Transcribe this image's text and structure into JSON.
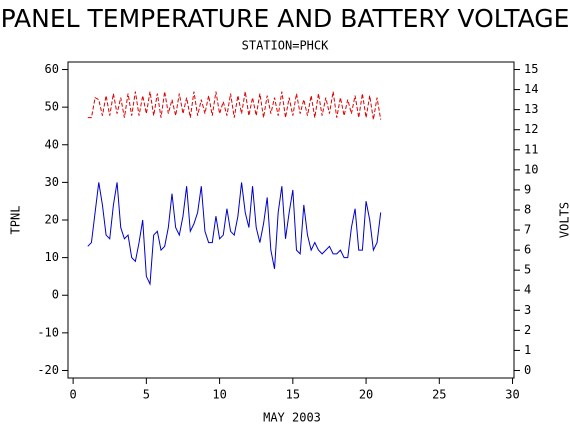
{
  "chart_data": {
    "type": "line",
    "title": "PANEL TEMPERATURE AND BATTERY VOLTAGE",
    "subtitle": "STATION=PHCK",
    "xlabel": "MAY 2003",
    "ylabel": "TPNL",
    "y2label": "VOLTS",
    "x": [
      1,
      1.25,
      1.5,
      1.75,
      2,
      2.25,
      2.5,
      2.75,
      3,
      3.25,
      3.5,
      3.75,
      4,
      4.25,
      4.5,
      4.75,
      5,
      5.25,
      5.5,
      5.75,
      6,
      6.25,
      6.5,
      6.75,
      7,
      7.25,
      7.5,
      7.75,
      8,
      8.25,
      8.5,
      8.75,
      9,
      9.25,
      9.5,
      9.75,
      10,
      10.25,
      10.5,
      10.75,
      11,
      11.25,
      11.5,
      11.75,
      12,
      12.25,
      12.5,
      12.75,
      13,
      13.25,
      13.5,
      13.75,
      14,
      14.25,
      14.5,
      14.75,
      15,
      15.25,
      15.5,
      15.75,
      16,
      16.25,
      16.5,
      16.75,
      17,
      17.25,
      17.5,
      17.75,
      18,
      18.25,
      18.5,
      18.75,
      19,
      19.25,
      19.5,
      19.75,
      20,
      20.25,
      20.5,
      20.75,
      21
    ],
    "series": [
      {
        "name": "TPNL",
        "color": "#0000cc",
        "axis": "y",
        "dashed": false,
        "values": [
          13,
          14,
          22,
          30,
          24,
          16,
          15,
          24,
          30,
          18,
          15,
          16,
          10,
          9,
          14,
          20,
          5,
          3,
          16,
          17,
          12,
          13,
          18,
          27,
          18,
          16,
          21,
          29,
          17,
          19,
          22,
          29,
          17,
          14,
          14,
          21,
          15,
          16,
          23,
          17,
          16,
          21,
          30,
          22,
          18,
          29,
          18,
          14,
          19,
          26,
          12,
          7,
          22,
          29,
          15,
          22,
          28,
          12,
          11,
          24,
          16,
          12,
          14,
          12,
          11,
          12,
          13,
          11,
          11,
          12,
          10,
          10,
          18,
          23,
          12,
          12,
          25,
          20,
          12,
          14,
          22
        ]
      },
      {
        "name": "VOLTS",
        "color": "#dd0000",
        "axis": "y2",
        "dashed": true,
        "values": [
          12.6,
          12.6,
          13.6,
          13.5,
          12.7,
          13.7,
          12.7,
          13.8,
          12.8,
          13.6,
          12.6,
          13.8,
          12.7,
          13.9,
          12.7,
          13.7,
          12.8,
          13.9,
          12.7,
          13.8,
          12.6,
          13.9,
          12.8,
          13.5,
          12.7,
          13.8,
          12.8,
          13.6,
          12.6,
          13.9,
          12.7,
          13.5,
          12.8,
          13.7,
          12.7,
          13.9,
          12.8,
          13.4,
          12.7,
          13.8,
          12.6,
          13.7,
          12.8,
          13.9,
          12.7,
          13.6,
          12.7,
          13.8,
          12.6,
          13.7,
          12.8,
          13.6,
          12.7,
          13.9,
          12.6,
          13.6,
          12.7,
          13.8,
          12.8,
          13.5,
          12.7,
          13.7,
          12.6,
          13.8,
          12.7,
          13.6,
          12.8,
          13.9,
          12.6,
          13.6,
          12.7,
          13.5,
          12.8,
          13.7,
          12.6,
          13.8,
          12.6,
          13.7,
          12.5,
          13.6,
          12.5
        ]
      }
    ],
    "xlim": [
      -0.35,
      30.1
    ],
    "xticks": [
      0,
      5,
      10,
      15,
      20,
      25,
      30
    ],
    "ylim": [
      -22,
      62
    ],
    "yticks": [
      -20,
      -10,
      0,
      10,
      20,
      30,
      40,
      50,
      60
    ],
    "y2lim": [
      -0.375,
      15.375
    ],
    "y2ticks": [
      0,
      1,
      2,
      3,
      4,
      5,
      6,
      7,
      8,
      9,
      10,
      11,
      12,
      13,
      14,
      15
    ]
  }
}
